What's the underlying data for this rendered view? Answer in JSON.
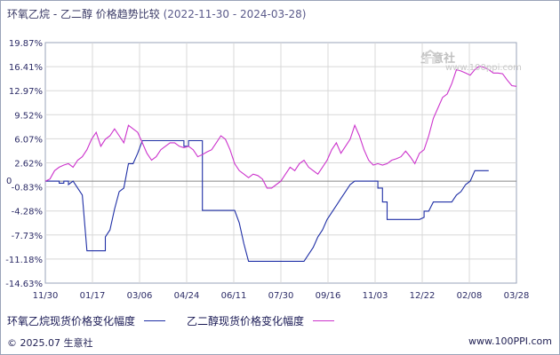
{
  "title": {
    "main": "环氧乙烷 - 乙二醇 价格趋势比较",
    "range": "(2022-11-30 - 2024-03-28)"
  },
  "watermark": {
    "name": "生意社",
    "url": "www.100ppi.com"
  },
  "footer": {
    "copyright": "© 2025.07 生意社",
    "site": "www.100PPI.com"
  },
  "chart_data": {
    "type": "line",
    "title": "环氧乙烷 - 乙二醇 价格趋势比较",
    "subtitle": "(2022-11-30 - 2024-03-28)",
    "xlabel": "",
    "ylabel": "",
    "y_ticks": [
      "19.87%",
      "16.41%",
      "12.97%",
      "9.52%",
      "6.07%",
      "2.62%",
      "-0.83%",
      "-4.28%",
      "-7.73%",
      "-11.18%",
      "-14.63%"
    ],
    "x_ticks": [
      "11/30",
      "01/17",
      "03/06",
      "04/24",
      "06/11",
      "07/30",
      "09/16",
      "11/03",
      "12/22",
      "02/08",
      "03/28"
    ],
    "ylim": [
      -14.63,
      19.87
    ],
    "grid": true,
    "zero_line": "0",
    "legend_position": "bottom",
    "colors": {
      "series1": "#1f2fa6",
      "series2": "#cc33cc",
      "zero": "#888888",
      "grid": "#d8d8d8",
      "axis": "#2b2b66"
    },
    "series": [
      {
        "name": "环氧乙烷现货价格变化幅度",
        "color": "#1f2fa6",
        "points": [
          [
            0,
            0
          ],
          [
            3,
            0
          ],
          [
            3,
            -0.3
          ],
          [
            4,
            -0.3
          ],
          [
            4,
            0
          ],
          [
            5,
            0
          ],
          [
            5,
            -0.5
          ],
          [
            6,
            0
          ],
          [
            7,
            -1
          ],
          [
            8,
            -2
          ],
          [
            9,
            -10
          ],
          [
            13,
            -10
          ],
          [
            13,
            -8
          ],
          [
            14,
            -7
          ],
          [
            15,
            -4
          ],
          [
            16,
            -1.5
          ],
          [
            17,
            -1
          ],
          [
            18,
            2.5
          ],
          [
            19,
            2.5
          ],
          [
            20,
            4
          ],
          [
            21,
            5.8
          ],
          [
            30,
            5.8
          ],
          [
            30,
            5
          ],
          [
            31,
            5
          ],
          [
            31,
            5.8
          ],
          [
            34,
            5.8
          ],
          [
            34,
            -4.2
          ],
          [
            41,
            -4.2
          ],
          [
            42,
            -6
          ],
          [
            43,
            -9
          ],
          [
            44,
            -11.5
          ],
          [
            56,
            -11.5
          ],
          [
            57,
            -10.5
          ],
          [
            58,
            -9.5
          ],
          [
            59,
            -8
          ],
          [
            60,
            -7
          ],
          [
            61,
            -5.5
          ],
          [
            62,
            -4.5
          ],
          [
            63,
            -3.5
          ],
          [
            64,
            -2.5
          ],
          [
            65,
            -1.5
          ],
          [
            66,
            -0.5
          ],
          [
            67,
            0
          ],
          [
            72,
            0
          ],
          [
            72,
            -1
          ],
          [
            73,
            -1
          ],
          [
            73,
            -3
          ],
          [
            74,
            -3
          ],
          [
            74,
            -5.5
          ],
          [
            81,
            -5.5
          ],
          [
            82,
            -5.2
          ],
          [
            82,
            -4.3
          ],
          [
            83,
            -4.3
          ],
          [
            84,
            -3
          ],
          [
            88,
            -3
          ],
          [
            89,
            -2
          ],
          [
            90,
            -1.5
          ],
          [
            91,
            -0.5
          ],
          [
            92,
            0
          ],
          [
            93,
            1.5
          ],
          [
            96,
            1.5
          ]
        ]
      },
      {
        "name": "乙二醇现货价格变化幅度",
        "color": "#cc33cc",
        "points": [
          [
            0,
            0
          ],
          [
            1,
            0.3
          ],
          [
            2,
            1.5
          ],
          [
            3,
            2
          ],
          [
            4,
            2.3
          ],
          [
            5,
            2.5
          ],
          [
            6,
            2
          ],
          [
            7,
            3
          ],
          [
            8,
            3.5
          ],
          [
            9,
            4.5
          ],
          [
            10,
            6
          ],
          [
            11,
            7
          ],
          [
            12,
            5
          ],
          [
            13,
            6
          ],
          [
            14,
            6.5
          ],
          [
            15,
            7.5
          ],
          [
            16,
            6.5
          ],
          [
            17,
            5.5
          ],
          [
            18,
            8
          ],
          [
            19,
            7.5
          ],
          [
            20,
            7
          ],
          [
            21,
            5.5
          ],
          [
            22,
            4
          ],
          [
            23,
            3
          ],
          [
            24,
            3.5
          ],
          [
            25,
            4.5
          ],
          [
            26,
            5
          ],
          [
            27,
            5.5
          ],
          [
            28,
            5.5
          ],
          [
            29,
            5
          ],
          [
            30,
            4.8
          ],
          [
            31,
            5
          ],
          [
            32,
            4.5
          ],
          [
            33,
            3.5
          ],
          [
            34,
            3.8
          ],
          [
            35,
            4.2
          ],
          [
            36,
            4.5
          ],
          [
            37,
            5.5
          ],
          [
            38,
            6.5
          ],
          [
            39,
            6
          ],
          [
            40,
            4.5
          ],
          [
            41,
            2.5
          ],
          [
            42,
            1.5
          ],
          [
            43,
            1
          ],
          [
            44,
            0.5
          ],
          [
            45,
            1
          ],
          [
            46,
            0.8
          ],
          [
            47,
            0.3
          ],
          [
            48,
            -1
          ],
          [
            49,
            -1
          ],
          [
            50,
            -0.5
          ],
          [
            51,
            0
          ],
          [
            52,
            1
          ],
          [
            53,
            2
          ],
          [
            54,
            1.5
          ],
          [
            55,
            2.5
          ],
          [
            56,
            3
          ],
          [
            57,
            2
          ],
          [
            58,
            1.5
          ],
          [
            59,
            1
          ],
          [
            60,
            2
          ],
          [
            61,
            3
          ],
          [
            62,
            4.5
          ],
          [
            63,
            5.5
          ],
          [
            64,
            4
          ],
          [
            65,
            5
          ],
          [
            66,
            6
          ],
          [
            67,
            8
          ],
          [
            68,
            6.5
          ],
          [
            69,
            4.5
          ],
          [
            70,
            3
          ],
          [
            71,
            2.3
          ],
          [
            72,
            2.5
          ],
          [
            73,
            2.3
          ],
          [
            74,
            2.5
          ],
          [
            75,
            3
          ],
          [
            76,
            3.2
          ],
          [
            77,
            3.5
          ],
          [
            78,
            4.3
          ],
          [
            79,
            3.5
          ],
          [
            80,
            2.5
          ],
          [
            81,
            4
          ],
          [
            82,
            4.5
          ],
          [
            83,
            6.5
          ],
          [
            84,
            9
          ],
          [
            85,
            10.5
          ],
          [
            86,
            12
          ],
          [
            87,
            12.5
          ],
          [
            88,
            14
          ],
          [
            89,
            16
          ],
          [
            90,
            15.8
          ],
          [
            91,
            15.5
          ],
          [
            92,
            15.2
          ],
          [
            93,
            16
          ],
          [
            94,
            16.5
          ],
          [
            95,
            16.3
          ],
          [
            96,
            16
          ],
          [
            97,
            15.5
          ],
          [
            98,
            15.5
          ],
          [
            99,
            15.4
          ],
          [
            100,
            14.5
          ],
          [
            101,
            13.7
          ],
          [
            102,
            13.6
          ]
        ]
      }
    ],
    "x_domain": [
      0,
      102
    ]
  }
}
